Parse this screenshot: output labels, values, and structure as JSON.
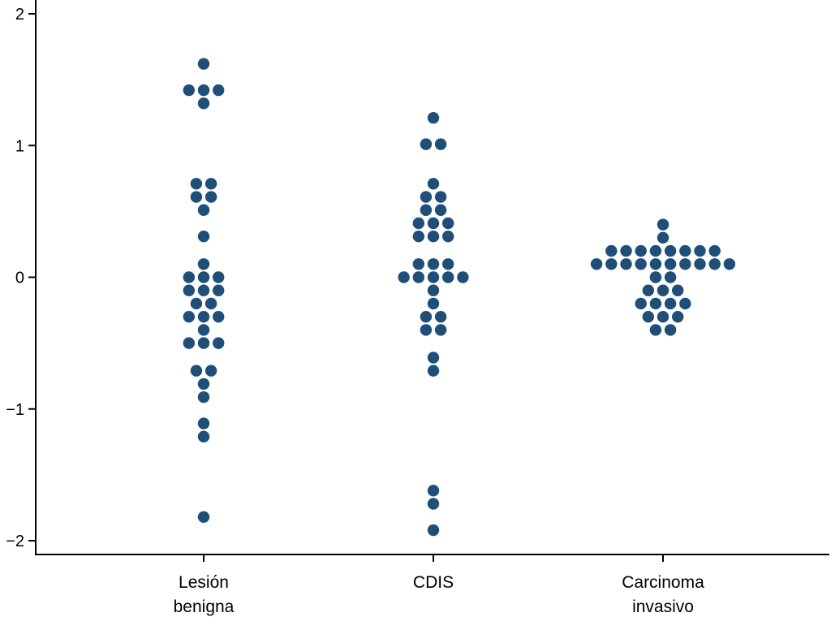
{
  "chart_data": {
    "type": "scatter",
    "subtype": "dot-plot",
    "title": "",
    "xlabel": "",
    "ylabel": "",
    "ylim": [
      -2,
      2
    ],
    "yticks": [
      {
        "value": 2,
        "label": "2"
      },
      {
        "value": 1,
        "label": "1"
      },
      {
        "value": 0,
        "label": "0"
      },
      {
        "value": -1,
        "label": "−1"
      },
      {
        "value": -2,
        "label": "−2"
      }
    ],
    "categories": [
      {
        "label_lines": [
          "Lesión",
          "benigna"
        ]
      },
      {
        "label_lines": [
          "CDIS"
        ]
      },
      {
        "label_lines": [
          "Carcinoma",
          "invasivo"
        ]
      }
    ],
    "groups": [
      {
        "name": "Lesión benigna",
        "values": [
          1.62,
          1.42,
          1.42,
          1.42,
          1.32,
          0.71,
          0.71,
          0.61,
          0.61,
          0.51,
          0.31,
          0.1,
          0,
          0,
          0,
          -0.1,
          -0.1,
          -0.1,
          -0.2,
          -0.2,
          -0.3,
          -0.3,
          -0.3,
          -0.4,
          -0.5,
          -0.5,
          -0.5,
          -0.71,
          -0.71,
          -0.81,
          -0.91,
          -1.11,
          -1.21,
          -1.82
        ]
      },
      {
        "name": "CDIS",
        "values": [
          1.21,
          1.01,
          1.01,
          0.71,
          0.61,
          0.61,
          0.51,
          0.51,
          0.41,
          0.41,
          0.41,
          0.31,
          0.31,
          0.31,
          0.1,
          0.1,
          0.1,
          0,
          0,
          0,
          0,
          0,
          -0.1,
          -0.2,
          -0.3,
          -0.3,
          -0.4,
          -0.4,
          -0.61,
          -0.71,
          -1.62,
          -1.72,
          -1.92
        ]
      },
      {
        "name": "Carcinoma invasivo",
        "values": [
          0.4,
          0.3,
          0.2,
          0.2,
          0.2,
          0.2,
          0.2,
          0.2,
          0.2,
          0.2,
          0.1,
          0.1,
          0.1,
          0.1,
          0.1,
          0.1,
          0.1,
          0.1,
          0.1,
          0.1,
          0,
          0,
          -0.1,
          -0.1,
          -0.1,
          -0.2,
          -0.2,
          -0.2,
          -0.2,
          -0.3,
          -0.3,
          -0.3,
          -0.4,
          -0.4
        ]
      }
    ],
    "marker_color": "#1f4e79",
    "axis_color": "#000000"
  }
}
